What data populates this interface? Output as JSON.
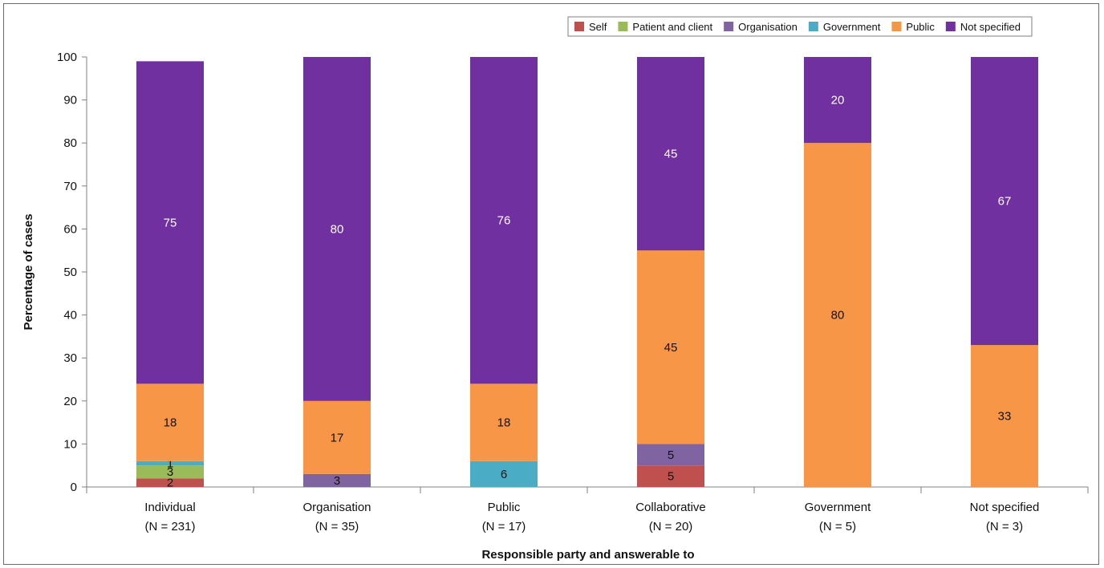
{
  "chart_data": {
    "type": "bar",
    "stacked": true,
    "xlabel": "Responsible party and answerable to",
    "ylabel": "Percentage of cases",
    "ylim": [
      0,
      100
    ],
    "yticks": [
      0,
      10,
      20,
      30,
      40,
      50,
      60,
      70,
      80,
      90,
      100
    ],
    "categories": [
      "Individual",
      "Organisation",
      "Public",
      "Collaborative",
      "Government",
      "Not specified"
    ],
    "category_n": [
      "(N = 231)",
      "(N = 35)",
      "(N = 17)",
      "(N = 20)",
      "(N = 5)",
      "(N = 3)"
    ],
    "legend_position": "top-right",
    "series": [
      {
        "name": "Self",
        "color": "#c0504d",
        "values": [
          2,
          0,
          0,
          5,
          0,
          0
        ],
        "labels": [
          "2",
          "",
          "",
          "5",
          "",
          ""
        ]
      },
      {
        "name": "Patient and client",
        "color": "#9bbb59",
        "values": [
          3,
          0,
          0,
          0,
          0,
          0
        ],
        "labels": [
          "3",
          "",
          "",
          "",
          "",
          ""
        ]
      },
      {
        "name": "Organisation",
        "color": "#8064a2",
        "values": [
          0,
          3,
          0,
          5,
          0,
          0
        ],
        "labels": [
          "",
          "3",
          "",
          "5",
          "",
          ""
        ]
      },
      {
        "name": "Government",
        "color": "#4bacc6",
        "values": [
          1,
          0,
          6,
          0,
          0,
          0
        ],
        "labels": [
          "1",
          "",
          "6",
          "",
          "",
          ""
        ]
      },
      {
        "name": "Public",
        "color": "#f79646",
        "values": [
          18,
          17,
          18,
          45,
          80,
          33
        ],
        "labels": [
          "18",
          "17",
          "18",
          "45",
          "80",
          "33"
        ]
      },
      {
        "name": "Not specified",
        "color": "#7030a0",
        "values": [
          75,
          80,
          76,
          45,
          20,
          67
        ],
        "labels": [
          "75",
          "80",
          "76",
          "45",
          "20",
          "67"
        ]
      }
    ]
  }
}
